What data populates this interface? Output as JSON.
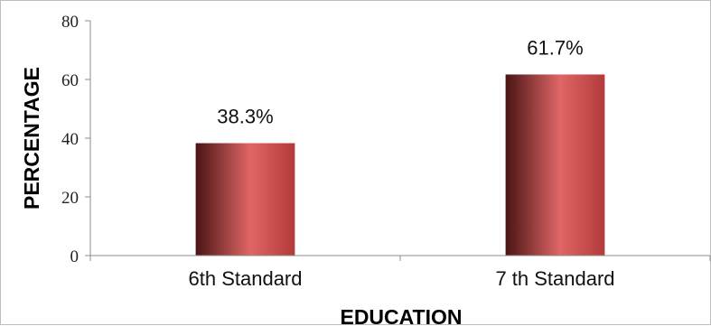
{
  "chart_data": {
    "type": "bar",
    "title": "",
    "xlabel": "EDUCATION",
    "ylabel": "PERCENTAGE",
    "categories": [
      "6th Standard",
      "7 th Standard"
    ],
    "values": [
      38.3,
      61.7
    ],
    "data_labels": [
      "38.3%",
      "61.7%"
    ],
    "ylim": [
      0,
      80
    ],
    "yticks": [
      0,
      20,
      40,
      60,
      80
    ],
    "grid": false,
    "legend": "none",
    "bar_color_dark": "#4a1414",
    "bar_color_light": "#e06666"
  }
}
